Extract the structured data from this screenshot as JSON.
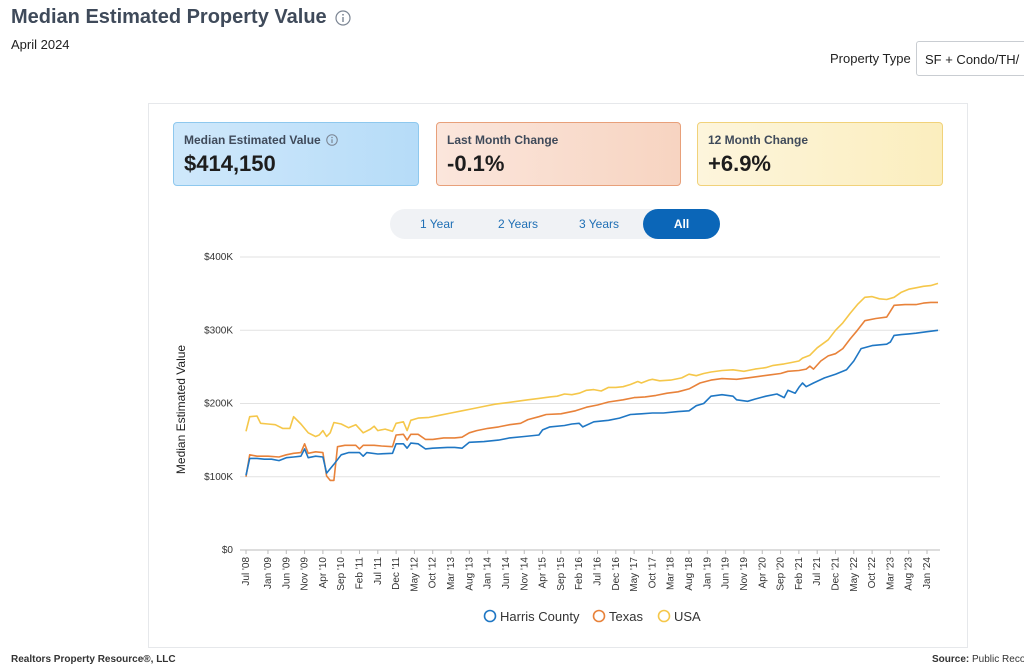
{
  "header": {
    "title": "Median Estimated Property Value",
    "date": "April 2024"
  },
  "filter": {
    "label": "Property Type",
    "value": "SF + Condo/TH/"
  },
  "cards": [
    {
      "title": "Median Estimated Value",
      "value": "$414,150",
      "color": "#b6dcf8"
    },
    {
      "title": "Last Month Change",
      "value": "-0.1%",
      "color": "#f7d4c1"
    },
    {
      "title": "12 Month Change",
      "value": "+6.9%",
      "color": "#fbeebe"
    }
  ],
  "range_buttons": [
    {
      "label": "1 Year",
      "active": false
    },
    {
      "label": "2 Years",
      "active": false
    },
    {
      "label": "3 Years",
      "active": false
    },
    {
      "label": "All",
      "active": true
    }
  ],
  "chart_data": {
    "type": "line",
    "ylabel": "Median Estimated Value",
    "xlabel": "",
    "ylim": [
      0,
      400000
    ],
    "yticks": [
      0,
      100000,
      200000,
      300000,
      400000
    ],
    "ytick_labels": [
      "$0",
      "$100K",
      "$200K",
      "$300K",
      "$400K"
    ],
    "x_start_index": 0,
    "x_end_index": 189,
    "xticks": [
      {
        "index": 0,
        "label": "Jul '08"
      },
      {
        "index": 6,
        "label": "Jan '09"
      },
      {
        "index": 11,
        "label": "Jun '09"
      },
      {
        "index": 16,
        "label": "Nov '09"
      },
      {
        "index": 21,
        "label": "Apr '10"
      },
      {
        "index": 26,
        "label": "Sep '10"
      },
      {
        "index": 31,
        "label": "Feb '11"
      },
      {
        "index": 36,
        "label": "Jul '11"
      },
      {
        "index": 41,
        "label": "Dec '11"
      },
      {
        "index": 46,
        "label": "May '12"
      },
      {
        "index": 51,
        "label": "Oct '12"
      },
      {
        "index": 56,
        "label": "Mar '13"
      },
      {
        "index": 61,
        "label": "Aug '13"
      },
      {
        "index": 66,
        "label": "Jan '14"
      },
      {
        "index": 71,
        "label": "Jun '14"
      },
      {
        "index": 76,
        "label": "Nov '14"
      },
      {
        "index": 81,
        "label": "Apr '15"
      },
      {
        "index": 86,
        "label": "Sep '15"
      },
      {
        "index": 91,
        "label": "Feb '16"
      },
      {
        "index": 96,
        "label": "Jul '16"
      },
      {
        "index": 101,
        "label": "Dec '16"
      },
      {
        "index": 106,
        "label": "May '17"
      },
      {
        "index": 111,
        "label": "Oct '17"
      },
      {
        "index": 116,
        "label": "Mar '18"
      },
      {
        "index": 121,
        "label": "Aug '18"
      },
      {
        "index": 126,
        "label": "Jan '19"
      },
      {
        "index": 131,
        "label": "Jun '19"
      },
      {
        "index": 136,
        "label": "Nov '19"
      },
      {
        "index": 141,
        "label": "Apr '20"
      },
      {
        "index": 146,
        "label": "Sep '20"
      },
      {
        "index": 151,
        "label": "Feb '21"
      },
      {
        "index": 156,
        "label": "Jul '21"
      },
      {
        "index": 161,
        "label": "Dec '21"
      },
      {
        "index": 166,
        "label": "May '22"
      },
      {
        "index": 171,
        "label": "Oct '22"
      },
      {
        "index": 176,
        "label": "Mar '23"
      },
      {
        "index": 181,
        "label": "Aug '23"
      },
      {
        "index": 186,
        "label": "Jan '24"
      }
    ],
    "series": [
      {
        "name": "Harris County",
        "color": "#1f77c4",
        "points": [
          [
            0,
            102000
          ],
          [
            1,
            125000
          ],
          [
            3,
            125000
          ],
          [
            5,
            124000
          ],
          [
            7,
            124000
          ],
          [
            9,
            122000
          ],
          [
            11,
            126000
          ],
          [
            13,
            127000
          ],
          [
            15,
            128000
          ],
          [
            16,
            138000
          ],
          [
            17,
            126000
          ],
          [
            19,
            128000
          ],
          [
            21,
            127000
          ],
          [
            22,
            105000
          ],
          [
            24,
            117000
          ],
          [
            26,
            130000
          ],
          [
            28,
            133000
          ],
          [
            31,
            133000
          ],
          [
            32,
            128000
          ],
          [
            33,
            133000
          ],
          [
            36,
            131000
          ],
          [
            40,
            132000
          ],
          [
            41,
            145000
          ],
          [
            43,
            145000
          ],
          [
            44,
            139000
          ],
          [
            45,
            146000
          ],
          [
            47,
            145000
          ],
          [
            49,
            138000
          ],
          [
            51,
            139000
          ],
          [
            55,
            140000
          ],
          [
            57,
            140000
          ],
          [
            59,
            139000
          ],
          [
            61,
            147000
          ],
          [
            65,
            148000
          ],
          [
            69,
            150000
          ],
          [
            72,
            153000
          ],
          [
            76,
            155000
          ],
          [
            80,
            157000
          ],
          [
            81,
            164000
          ],
          [
            83,
            168000
          ],
          [
            87,
            170000
          ],
          [
            89,
            172000
          ],
          [
            91,
            173000
          ],
          [
            92,
            168000
          ],
          [
            95,
            175000
          ],
          [
            99,
            177000
          ],
          [
            102,
            180000
          ],
          [
            105,
            185000
          ],
          [
            108,
            186000
          ],
          [
            111,
            187000
          ],
          [
            114,
            187000
          ],
          [
            118,
            189000
          ],
          [
            121,
            190000
          ],
          [
            123,
            197000
          ],
          [
            125,
            200000
          ],
          [
            127,
            210000
          ],
          [
            130,
            212000
          ],
          [
            133,
            210000
          ],
          [
            134,
            205000
          ],
          [
            137,
            203000
          ],
          [
            139,
            206000
          ],
          [
            142,
            210000
          ],
          [
            145,
            213000
          ],
          [
            147,
            208000
          ],
          [
            148,
            218000
          ],
          [
            150,
            214000
          ],
          [
            151,
            222000
          ],
          [
            152,
            228000
          ],
          [
            153,
            223000
          ],
          [
            155,
            228000
          ],
          [
            158,
            235000
          ],
          [
            161,
            240000
          ],
          [
            164,
            246000
          ],
          [
            166,
            258000
          ],
          [
            168,
            275000
          ],
          [
            171,
            279000
          ],
          [
            175,
            281000
          ],
          [
            176,
            284000
          ],
          [
            177,
            293000
          ],
          [
            179,
            294000
          ],
          [
            181,
            295000
          ],
          [
            183,
            296000
          ],
          [
            186,
            298000
          ],
          [
            189,
            300000
          ]
        ]
      },
      {
        "name": "Texas",
        "color": "#e8823a",
        "points": [
          [
            0,
            100000
          ],
          [
            1,
            130000
          ],
          [
            3,
            128000
          ],
          [
            6,
            128000
          ],
          [
            9,
            127000
          ],
          [
            11,
            130000
          ],
          [
            13,
            132000
          ],
          [
            15,
            133000
          ],
          [
            16,
            145000
          ],
          [
            17,
            132000
          ],
          [
            19,
            134000
          ],
          [
            21,
            133000
          ],
          [
            22,
            101000
          ],
          [
            23,
            95000
          ],
          [
            24,
            95000
          ],
          [
            25,
            141000
          ],
          [
            27,
            143000
          ],
          [
            30,
            143000
          ],
          [
            31,
            138000
          ],
          [
            32,
            143000
          ],
          [
            35,
            143000
          ],
          [
            37,
            142000
          ],
          [
            40,
            141000
          ],
          [
            41,
            157000
          ],
          [
            43,
            158000
          ],
          [
            44,
            150000
          ],
          [
            45,
            158000
          ],
          [
            47,
            158000
          ],
          [
            49,
            151000
          ],
          [
            51,
            151000
          ],
          [
            54,
            153000
          ],
          [
            57,
            153000
          ],
          [
            59,
            154000
          ],
          [
            61,
            160000
          ],
          [
            63,
            163000
          ],
          [
            66,
            166000
          ],
          [
            69,
            168000
          ],
          [
            72,
            171000
          ],
          [
            75,
            173000
          ],
          [
            77,
            178000
          ],
          [
            80,
            182000
          ],
          [
            82,
            185000
          ],
          [
            86,
            186000
          ],
          [
            88,
            188000
          ],
          [
            90,
            190000
          ],
          [
            93,
            195000
          ],
          [
            96,
            198000
          ],
          [
            99,
            202000
          ],
          [
            103,
            205000
          ],
          [
            106,
            208000
          ],
          [
            109,
            209000
          ],
          [
            112,
            211000
          ],
          [
            115,
            214000
          ],
          [
            118,
            216000
          ],
          [
            121,
            220000
          ],
          [
            124,
            228000
          ],
          [
            127,
            232000
          ],
          [
            130,
            234000
          ],
          [
            134,
            233000
          ],
          [
            137,
            235000
          ],
          [
            140,
            237000
          ],
          [
            143,
            239000
          ],
          [
            146,
            241000
          ],
          [
            148,
            244000
          ],
          [
            151,
            245000
          ],
          [
            153,
            247000
          ],
          [
            154,
            251000
          ],
          [
            155,
            247000
          ],
          [
            157,
            258000
          ],
          [
            159,
            265000
          ],
          [
            161,
            268000
          ],
          [
            163,
            275000
          ],
          [
            165,
            288000
          ],
          [
            167,
            300000
          ],
          [
            169,
            313000
          ],
          [
            172,
            316000
          ],
          [
            175,
            318000
          ],
          [
            177,
            334000
          ],
          [
            180,
            335000
          ],
          [
            183,
            335000
          ],
          [
            185,
            337000
          ],
          [
            187,
            338000
          ],
          [
            189,
            338000
          ]
        ]
      },
      {
        "name": "USA",
        "color": "#f5c74a",
        "points": [
          [
            0,
            162000
          ],
          [
            1,
            182000
          ],
          [
            3,
            183000
          ],
          [
            4,
            173000
          ],
          [
            6,
            172000
          ],
          [
            8,
            171000
          ],
          [
            10,
            166000
          ],
          [
            12,
            166000
          ],
          [
            13,
            182000
          ],
          [
            15,
            172000
          ],
          [
            17,
            160000
          ],
          [
            19,
            155000
          ],
          [
            20,
            157000
          ],
          [
            21,
            163000
          ],
          [
            22,
            155000
          ],
          [
            23,
            160000
          ],
          [
            24,
            174000
          ],
          [
            26,
            172000
          ],
          [
            28,
            167000
          ],
          [
            30,
            171000
          ],
          [
            32,
            160000
          ],
          [
            34,
            165000
          ],
          [
            35,
            169000
          ],
          [
            36,
            163000
          ],
          [
            38,
            165000
          ],
          [
            40,
            162000
          ],
          [
            41,
            173000
          ],
          [
            43,
            175000
          ],
          [
            44,
            163000
          ],
          [
            45,
            177000
          ],
          [
            47,
            180000
          ],
          [
            50,
            181000
          ],
          [
            53,
            184000
          ],
          [
            56,
            187000
          ],
          [
            59,
            190000
          ],
          [
            62,
            193000
          ],
          [
            65,
            196000
          ],
          [
            68,
            199000
          ],
          [
            71,
            201000
          ],
          [
            74,
            203000
          ],
          [
            77,
            205000
          ],
          [
            80,
            207000
          ],
          [
            83,
            209000
          ],
          [
            85,
            210000
          ],
          [
            87,
            213000
          ],
          [
            89,
            212000
          ],
          [
            91,
            214000
          ],
          [
            93,
            218000
          ],
          [
            95,
            219000
          ],
          [
            97,
            217000
          ],
          [
            99,
            222000
          ],
          [
            101,
            222000
          ],
          [
            103,
            223000
          ],
          [
            105,
            226000
          ],
          [
            107,
            230000
          ],
          [
            108,
            228000
          ],
          [
            110,
            232000
          ],
          [
            111,
            233000
          ],
          [
            113,
            231000
          ],
          [
            116,
            232000
          ],
          [
            119,
            235000
          ],
          [
            121,
            240000
          ],
          [
            123,
            238000
          ],
          [
            125,
            241000
          ],
          [
            127,
            243000
          ],
          [
            130,
            245000
          ],
          [
            133,
            246000
          ],
          [
            136,
            244000
          ],
          [
            139,
            247000
          ],
          [
            142,
            249000
          ],
          [
            144,
            252000
          ],
          [
            147,
            254000
          ],
          [
            149,
            256000
          ],
          [
            151,
            258000
          ],
          [
            152,
            262000
          ],
          [
            154,
            266000
          ],
          [
            156,
            276000
          ],
          [
            159,
            287000
          ],
          [
            161,
            300000
          ],
          [
            163,
            310000
          ],
          [
            165,
            323000
          ],
          [
            167,
            335000
          ],
          [
            169,
            345000
          ],
          [
            171,
            346000
          ],
          [
            173,
            343000
          ],
          [
            175,
            342000
          ],
          [
            177,
            345000
          ],
          [
            179,
            352000
          ],
          [
            181,
            356000
          ],
          [
            183,
            358000
          ],
          [
            185,
            360000
          ],
          [
            187,
            361000
          ],
          [
            189,
            364000
          ]
        ]
      }
    ]
  },
  "footer": {
    "left": "Realtors Property Resource®, LLC",
    "right_label": "Source:",
    "right_value": "Public Records"
  }
}
